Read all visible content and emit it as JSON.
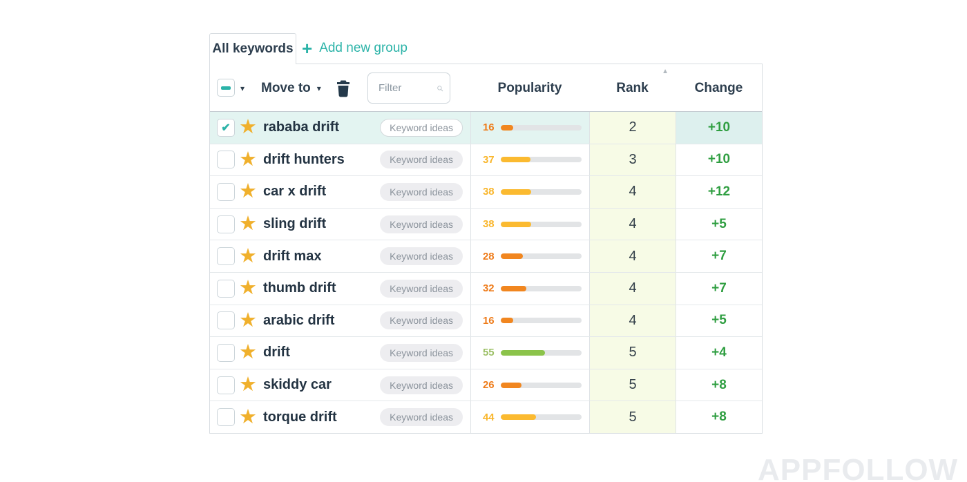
{
  "tab": {
    "label": "All keywords"
  },
  "add_group": {
    "plus": "+",
    "label": "Add new group"
  },
  "toolbar": {
    "move_to": "Move to",
    "filter_placeholder": "Filter",
    "filter_value": ""
  },
  "header": {
    "popularity": "Popularity",
    "rank": "Rank",
    "change": "Change",
    "sort_icon": "▲"
  },
  "badge_label": "Keyword ideas",
  "watermark": "APPFOLLOW",
  "colors": {
    "accent_teal": "#2bb3a8",
    "change_green": "#2f9e41",
    "rank_cell_bg": "#f7fbe6",
    "selected_row_bg": "#e3f4f1",
    "selected_change_bg": "#ddf0ee",
    "bar_track": "#e2e4e6",
    "star_gold": "#f0b02c",
    "pop": {
      "orange": {
        "text": "#ee7c1b",
        "bar": "#f1861f"
      },
      "amber": {
        "text": "#f9b62c",
        "bar": "#fbba30"
      },
      "green": {
        "text": "#9dc067",
        "bar": "#8bc34a"
      }
    }
  },
  "rows": [
    {
      "keyword": "rababa drift",
      "popularity": 16,
      "color": "orange",
      "rank": 2,
      "change": "+10",
      "selected": true
    },
    {
      "keyword": "drift hunters",
      "popularity": 37,
      "color": "amber",
      "rank": 3,
      "change": "+10",
      "selected": false
    },
    {
      "keyword": "car x drift",
      "popularity": 38,
      "color": "amber",
      "rank": 4,
      "change": "+12",
      "selected": false
    },
    {
      "keyword": "sling drift",
      "popularity": 38,
      "color": "amber",
      "rank": 4,
      "change": "+5",
      "selected": false
    },
    {
      "keyword": "drift max",
      "popularity": 28,
      "color": "orange",
      "rank": 4,
      "change": "+7",
      "selected": false
    },
    {
      "keyword": "thumb drift",
      "popularity": 32,
      "color": "orange",
      "rank": 4,
      "change": "+7",
      "selected": false
    },
    {
      "keyword": "arabic drift",
      "popularity": 16,
      "color": "orange",
      "rank": 4,
      "change": "+5",
      "selected": false
    },
    {
      "keyword": "drift",
      "popularity": 55,
      "color": "green",
      "rank": 5,
      "change": "+4",
      "selected": false
    },
    {
      "keyword": "skiddy car",
      "popularity": 26,
      "color": "orange",
      "rank": 5,
      "change": "+8",
      "selected": false
    },
    {
      "keyword": "torque drift",
      "popularity": 44,
      "color": "amber",
      "rank": 5,
      "change": "+8",
      "selected": false
    }
  ]
}
